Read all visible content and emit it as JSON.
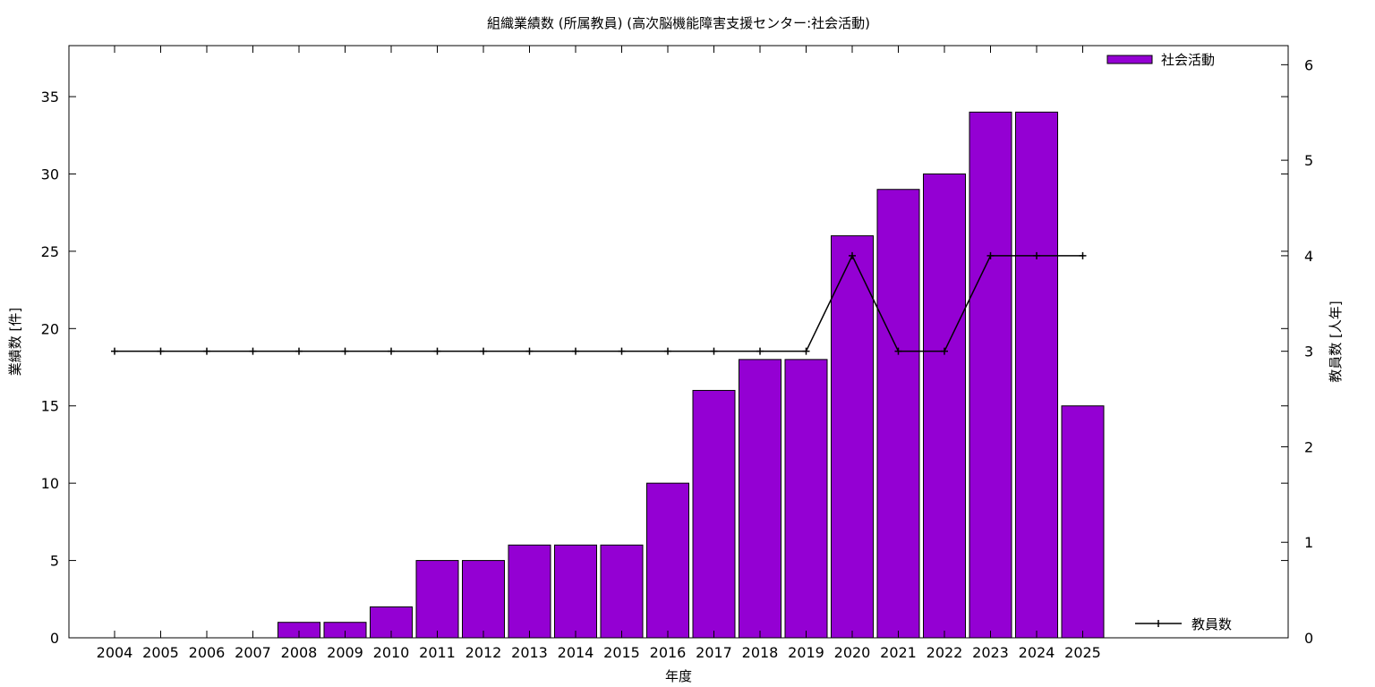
{
  "chart_data": {
    "type": "bar",
    "title": "組織業績数 (所属教員) (高次脳機能障害支援センター:社会活動)",
    "xlabel": "年度",
    "ylabel": "業績数 [件]",
    "y2label": "教員数 [人年]",
    "categories": [
      "2004",
      "2005",
      "2006",
      "2007",
      "2008",
      "2009",
      "2010",
      "2011",
      "2012",
      "2013",
      "2014",
      "2015",
      "2016",
      "2017",
      "2018",
      "2019",
      "2020",
      "2021",
      "2022",
      "2023",
      "2024",
      "2025"
    ],
    "ylim": [
      0,
      38.3
    ],
    "y2lim": [
      0,
      6.2
    ],
    "yticks": [
      0,
      5,
      10,
      15,
      20,
      25,
      30,
      35
    ],
    "y2ticks": [
      0,
      1,
      2,
      3,
      4,
      5,
      6
    ],
    "grid": false,
    "series": [
      {
        "name": "社会活動",
        "type": "bar",
        "axis": "left",
        "color": "#9400d3",
        "values": [
          0,
          0,
          0,
          0,
          1,
          1,
          2,
          5,
          5,
          6,
          6,
          6,
          10,
          16,
          18,
          18,
          26,
          29,
          30,
          34,
          34,
          15
        ]
      },
      {
        "name": "教員数",
        "type": "line",
        "axis": "right",
        "color": "#000000",
        "values": [
          3,
          3,
          3,
          3,
          3,
          3,
          3,
          3,
          3,
          3,
          3,
          3,
          3,
          3,
          3,
          3,
          4,
          3,
          3,
          4,
          4,
          4
        ]
      }
    ],
    "legend": [
      {
        "label": "社会活動",
        "position": "top-right"
      },
      {
        "label": "教員数",
        "position": "bottom-right"
      }
    ]
  }
}
